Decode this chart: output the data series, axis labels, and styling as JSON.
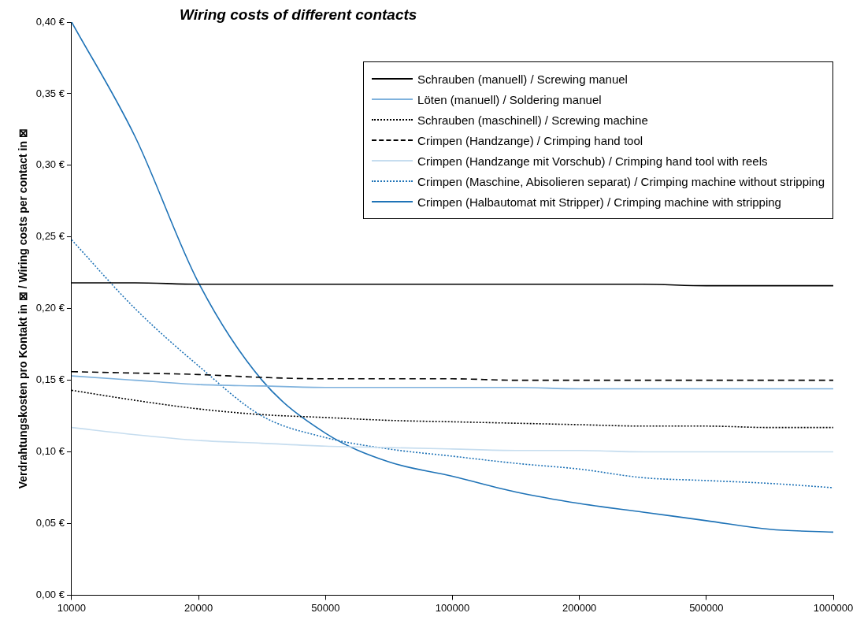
{
  "chart_data": {
    "type": "line",
    "title": "Wiring costs of different contacts",
    "ylabel": "Verdrahtungskosten pro Kontakt in ⊠ / Wiring costs per contact in ⊠",
    "categories": [
      "10000",
      null,
      "20000",
      null,
      "50000",
      null,
      "100000",
      null,
      "200000",
      null,
      "500000",
      null,
      "1000000"
    ],
    "ylim": [
      0,
      0.4
    ],
    "yticks": [
      {
        "value": 0,
        "label": "0,00 €"
      },
      {
        "value": 0.05,
        "label": "0,05 €"
      },
      {
        "value": 0.1,
        "label": "0,10 €"
      },
      {
        "value": 0.15,
        "label": "0,15 €"
      },
      {
        "value": 0.2,
        "label": "0,20 €"
      },
      {
        "value": 0.25,
        "label": "0,25 €"
      },
      {
        "value": 0.3,
        "label": "0,30 €"
      },
      {
        "value": 0.35,
        "label": "0,35 €"
      },
      {
        "value": 0.4,
        "label": "0,40 €"
      }
    ],
    "grid": false,
    "legend": "top right",
    "marker": "none",
    "series": [
      {
        "name": "Schrauben (manuell) / Screwing manuel",
        "color": "#000000",
        "line_style": "solid",
        "values": [
          0.218,
          0.218,
          0.217,
          0.217,
          0.217,
          0.217,
          0.217,
          0.217,
          0.217,
          0.217,
          0.216,
          0.216,
          0.216
        ]
      },
      {
        "name": "Löten (manuell) / Soldering manuel",
        "color": "#7fb2dd",
        "line_style": "solid",
        "values": [
          0.153,
          0.15,
          0.147,
          0.146,
          0.145,
          0.145,
          0.145,
          0.145,
          0.144,
          0.144,
          0.144,
          0.144,
          0.144
        ]
      },
      {
        "name": "Schrauben (maschinell) / Screwing machine",
        "color": "#000000",
        "line_style": "dotted",
        "values": [
          0.143,
          0.136,
          0.13,
          0.126,
          0.124,
          0.122,
          0.121,
          0.12,
          0.119,
          0.118,
          0.118,
          0.117,
          0.117
        ]
      },
      {
        "name": "Crimpen (Handzange) / Crimping hand tool",
        "color": "#000000",
        "line_style": "dashed",
        "values": [
          0.156,
          0.155,
          0.154,
          0.152,
          0.151,
          0.151,
          0.151,
          0.15,
          0.15,
          0.15,
          0.15,
          0.15,
          0.15
        ]
      },
      {
        "name": "Crimpen (Handzange mit Vorschub) / Crimping hand tool with reels",
        "color": "#c6ddef",
        "line_style": "solid",
        "values": [
          0.117,
          0.112,
          0.108,
          0.106,
          0.104,
          0.103,
          0.102,
          0.101,
          0.101,
          0.1,
          0.1,
          0.1,
          0.1
        ]
      },
      {
        "name": "Crimpen (Maschine, Abisolieren separat) / Crimping machine without stripping",
        "color": "#1f73b7",
        "line_style": "dotted",
        "values": [
          0.248,
          0.2,
          0.16,
          0.125,
          0.11,
          0.102,
          0.097,
          0.092,
          0.088,
          0.082,
          0.08,
          0.078,
          0.075
        ]
      },
      {
        "name": "Crimpen (Halbautomat mit Stripper) / Crimping machine with stripping",
        "color": "#1f73b7",
        "line_style": "solid",
        "values": [
          0.4,
          0.32,
          0.218,
          0.15,
          0.113,
          0.093,
          0.083,
          0.072,
          0.064,
          0.058,
          0.052,
          0.046,
          0.044
        ]
      }
    ]
  }
}
